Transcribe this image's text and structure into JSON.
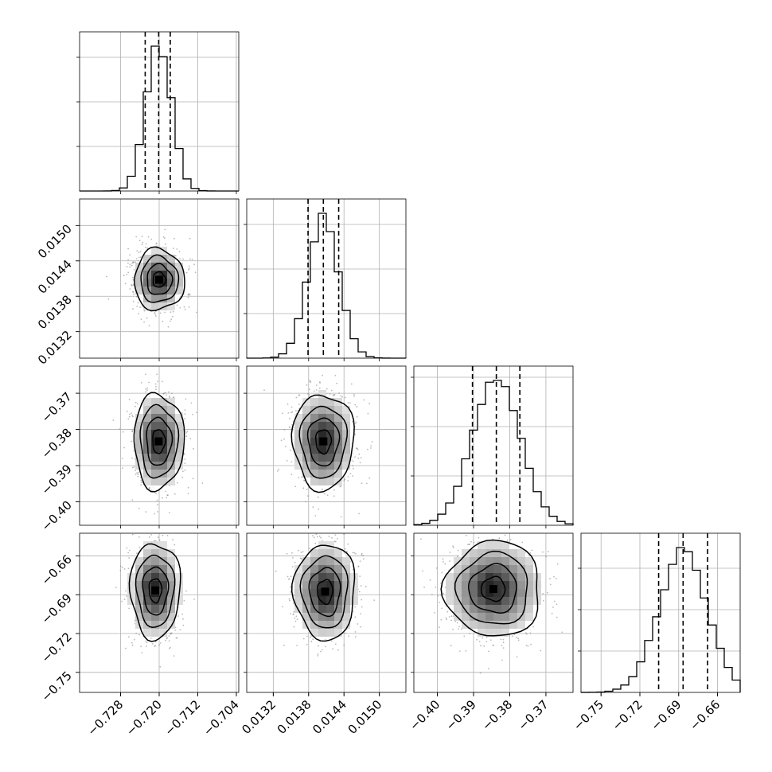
{
  "chart_data": {
    "type": "corner",
    "description_free": true,
    "parameters": [
      {
        "range": [
          -0.7365,
          -0.7035
        ],
        "ticks": [
          -0.728,
          -0.72,
          -0.712,
          -0.704
        ],
        "tick_labels": [
          "−0.728",
          "−0.720",
          "−0.712",
          "−0.704"
        ],
        "quantiles": [
          -0.7229,
          -0.7201,
          -0.7177
        ],
        "median": -0.7201,
        "sd": 0.0026,
        "hist_ticks_frac": [
          0.28,
          0.56,
          0.84
        ]
      },
      {
        "range": [
          0.01275,
          0.01545
        ],
        "ticks": [
          0.0132,
          0.0138,
          0.0144,
          0.015
        ],
        "tick_labels": [
          "0.0132",
          "0.0138",
          "0.0144",
          "0.0150"
        ],
        "quantiles": [
          0.01379,
          0.01405,
          0.01431
        ],
        "median": 0.01405,
        "sd": 0.00026,
        "hist_ticks_frac": [
          0.28,
          0.56,
          0.84
        ]
      },
      {
        "range": [
          -0.4065,
          -0.3625
        ],
        "ticks": [
          -0.4,
          -0.39,
          -0.38,
          -0.37
        ],
        "tick_labels": [
          "−0.40",
          "−0.39",
          "−0.38",
          "−0.37"
        ],
        "quantiles": [
          -0.3903,
          -0.3837,
          -0.3772
        ],
        "median": -0.3837,
        "sd": 0.0066,
        "hist_ticks_frac": [
          0.31,
          0.62,
          0.93
        ]
      },
      {
        "range": [
          -0.7655,
          -0.6425
        ],
        "ticks": [
          -0.75,
          -0.72,
          -0.69,
          -0.66
        ],
        "tick_labels": [
          "−0.75",
          "−0.72",
          "−0.69",
          "−0.66"
        ],
        "quantiles": [
          -0.7055,
          -0.6866,
          -0.6677
        ],
        "median": -0.6866,
        "sd": 0.0185,
        "hist_ticks_frac": [
          0.26,
          0.52,
          0.78
        ]
      }
    ],
    "panels_2d": [
      {
        "row": 1,
        "col": 0,
        "center": [
          -0.72,
          0.01408
        ],
        "rho": 0.0
      },
      {
        "row": 2,
        "col": 0,
        "center": [
          -0.7201,
          -0.3833
        ],
        "rho": 0.0
      },
      {
        "row": 2,
        "col": 1,
        "center": [
          0.01405,
          -0.3833
        ],
        "rho": 0.0
      },
      {
        "row": 3,
        "col": 0,
        "center": [
          -0.7208,
          -0.6866
        ],
        "rho": 0.0
      },
      {
        "row": 3,
        "col": 1,
        "center": [
          0.01408,
          -0.6876
        ],
        "rho": 0.0
      },
      {
        "row": 3,
        "col": 2,
        "center": [
          -0.3845,
          -0.6856
        ],
        "rho": 0.0
      }
    ],
    "contour_levels_sigma": [
      0.5,
      1.0,
      1.5,
      2.0
    ],
    "bins": 20,
    "grid": true,
    "colors": {
      "line": "#000000",
      "grid": "#b0b0b0",
      "points": "#7f7f7f",
      "density_dark": "#000000",
      "density_light": "#ffffff"
    }
  }
}
